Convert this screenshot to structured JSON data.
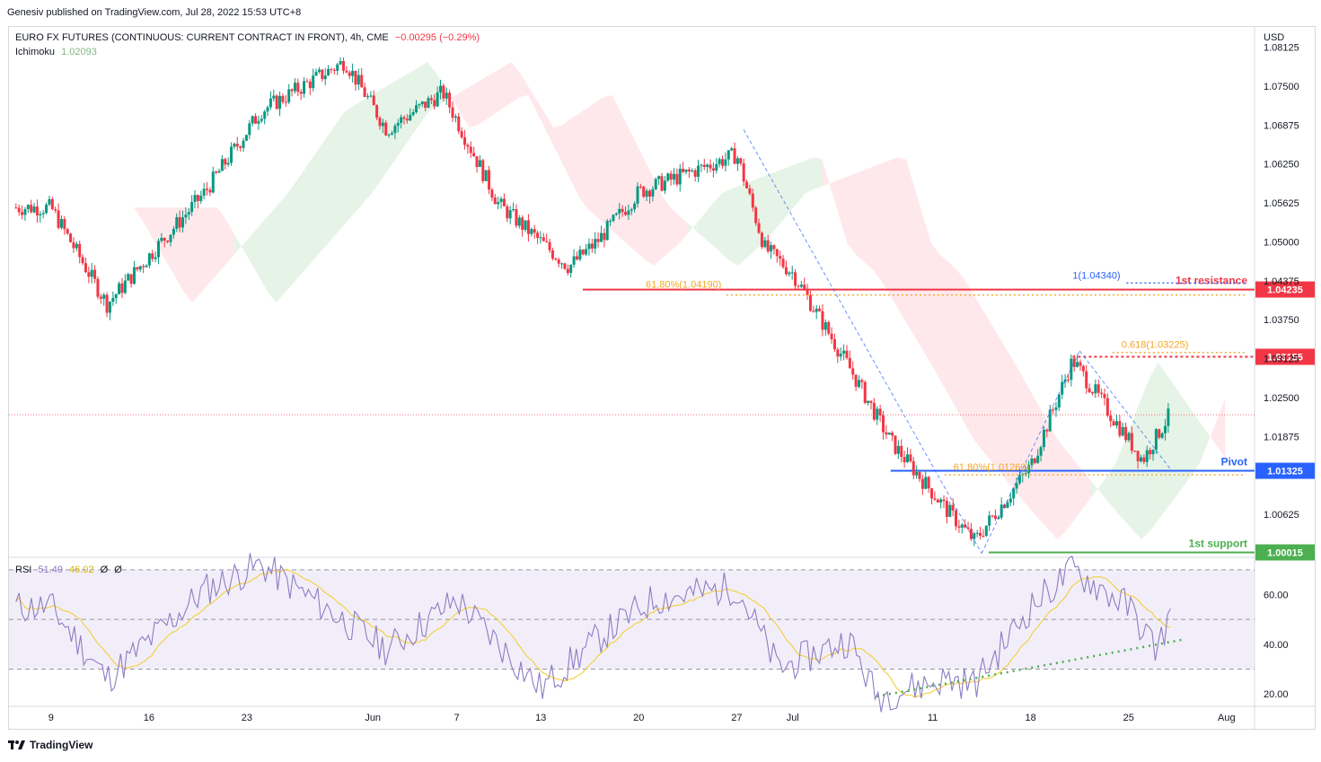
{
  "publisher": "Genesiv published on TradingView.com, Jul 28, 2022 15:53 UTC+8",
  "header": {
    "symbol": "EURO FX FUTURES (CONTINUOUS: CURRENT CONTRACT IN FRONT), 4h, CME",
    "change": "−0.00295 (−0.29%)",
    "indicator_name": "Ichimoku",
    "indicator_value": "1.02093"
  },
  "rsi_legend": {
    "name": "RSI",
    "value": "51.49",
    "ma": "46.02",
    "extra1": "Ø",
    "extra2": "Ø"
  },
  "footer": {
    "brand": "TradingView"
  },
  "colors": {
    "up": "#089981",
    "down": "#f23645",
    "cloud_bull": "#c8e6c9",
    "cloud_bear": "#ffcdd2",
    "rsi": "#8e7cc3",
    "rsi_ma": "#f2d14a",
    "resistance": "#f23645",
    "pivot": "#2962ff",
    "support": "#4caf50"
  },
  "chart_data": [
    {
      "type": "candlestick",
      "title": "EURO FX FUTURES (CONTINUOUS: CURRENT CONTRACT IN FRONT), 4h, CME",
      "currency": "USD",
      "y_ticks": [
        "1.08125",
        "1.07500",
        "1.06875",
        "1.06250",
        "1.05625",
        "1.05000",
        "1.04375",
        "1.03750",
        "1.03125",
        "1.02500",
        "1.01875",
        "1.01325",
        "1.00625",
        "1.00015"
      ],
      "ylim": [
        0.9995,
        1.0845
      ],
      "x_ticks": [
        "9",
        "16",
        "23",
        "Jun",
        "7",
        "13",
        "20",
        "27",
        "Jul",
        "11",
        "18",
        "25",
        "Aug"
      ],
      "close_anchors": [
        {
          "date": "May 9",
          "close": 1.0555
        },
        {
          "date": "May 13",
          "close": 1.04
        },
        {
          "date": "May 20",
          "close": 1.058
        },
        {
          "date": "May 24",
          "close": 1.071
        },
        {
          "date": "May 30",
          "close": 1.079
        },
        {
          "date": "Jun 2",
          "close": 1.068
        },
        {
          "date": "Jun 6",
          "close": 1.074
        },
        {
          "date": "Jun 10",
          "close": 1.056
        },
        {
          "date": "Jun 15",
          "close": 1.046
        },
        {
          "date": "Jun 17",
          "close": 1.05
        },
        {
          "date": "Jun 20",
          "close": 1.058
        },
        {
          "date": "Jun 27",
          "close": 1.064
        },
        {
          "date": "Jun 29",
          "close": 1.049
        },
        {
          "date": "Jul 1",
          "close": 1.045
        },
        {
          "date": "Jul 5",
          "close": 1.03
        },
        {
          "date": "Jul 8",
          "close": 1.018
        },
        {
          "date": "Jul 12",
          "close": 1.007
        },
        {
          "date": "Jul 14",
          "close": 1.002
        },
        {
          "date": "Jul 18",
          "close": 1.014
        },
        {
          "date": "Jul 21",
          "close": 1.031
        },
        {
          "date": "Jul 26",
          "close": 1.015
        },
        {
          "date": "Jul 28",
          "close": 1.0225
        }
      ],
      "levels": [
        {
          "label": "1st resistance",
          "price": "1.04235"
        },
        {
          "label": "",
          "price": "1.03155"
        },
        {
          "label": "Pivot",
          "price": "1.01325"
        },
        {
          "label": "1st support",
          "price": "1.00015"
        }
      ],
      "fib_labels": [
        "61.80%(1.04190)",
        "1(1.04340)",
        "0.618(1.03225)",
        "61.80%(1.01260)"
      ],
      "fib_values": [
        1.0419,
        1.0434,
        1.03225,
        1.0126
      ]
    },
    {
      "type": "line",
      "title": "RSI",
      "y_ticks": [
        "60.00",
        "40.00",
        "20.00"
      ],
      "ylim": [
        15,
        75
      ],
      "band": [
        30,
        70
      ],
      "rsi_anchors": [
        {
          "date": "May 9",
          "value": 55
        },
        {
          "date": "May 13",
          "value": 26
        },
        {
          "date": "May 20",
          "value": 62
        },
        {
          "date": "May 24",
          "value": 72
        },
        {
          "date": "Jun 2",
          "value": 38
        },
        {
          "date": "Jun 7",
          "value": 58
        },
        {
          "date": "Jun 13",
          "value": 22
        },
        {
          "date": "Jun 17",
          "value": 42
        },
        {
          "date": "Jun 21",
          "value": 58
        },
        {
          "date": "Jun 27",
          "value": 63
        },
        {
          "date": "Jun 30",
          "value": 30
        },
        {
          "date": "Jul 5",
          "value": 42
        },
        {
          "date": "Jul 7",
          "value": 19
        },
        {
          "date": "Jul 12",
          "value": 26
        },
        {
          "date": "Jul 14",
          "value": 24
        },
        {
          "date": "Jul 18",
          "value": 55
        },
        {
          "date": "Jul 21",
          "value": 70
        },
        {
          "date": "Jul 25",
          "value": 55
        },
        {
          "date": "Jul 27",
          "value": 38
        },
        {
          "date": "Jul 28",
          "value": 51.49
        }
      ],
      "trendline": [
        {
          "date": "Jul 7",
          "value": 19
        },
        {
          "date": "Jul 29",
          "value": 42
        }
      ]
    }
  ]
}
